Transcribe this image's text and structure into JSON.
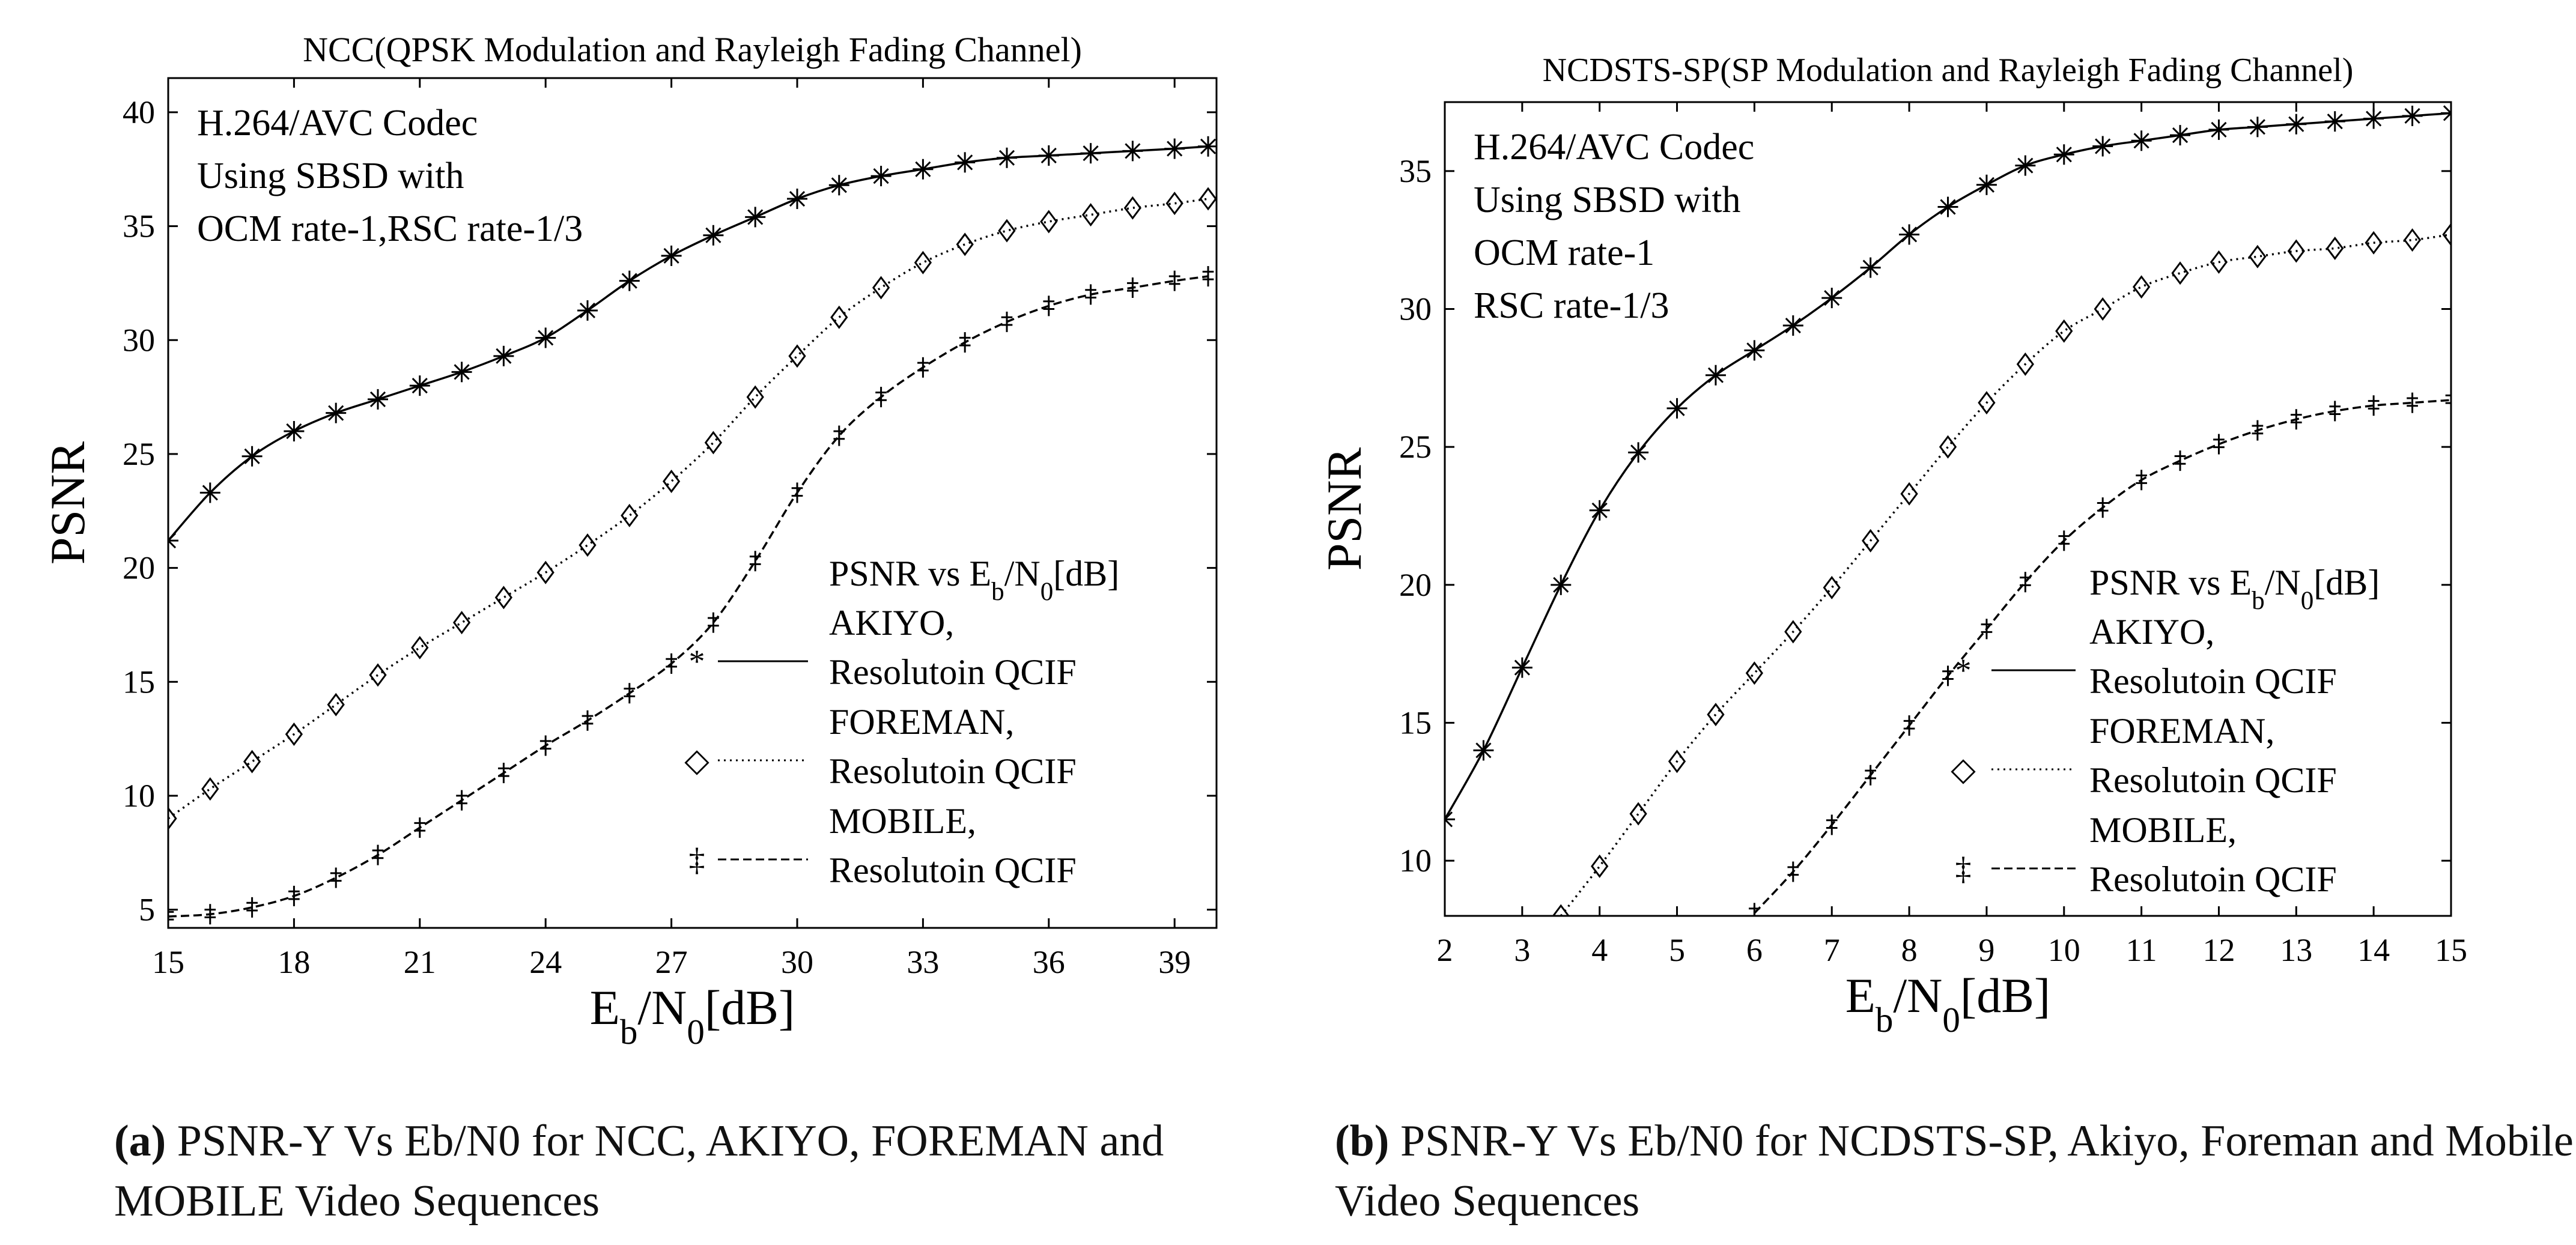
{
  "chart_data": [
    {
      "type": "line",
      "title": "NCC(QPSK Modulation and Rayleigh Fading Channel)",
      "annotation": [
        "H.264/AVC Codec",
        "Using SBSD with",
        "OCM rate-1,RSC rate-1/3"
      ],
      "xlabel": "Eb/N0[dB]",
      "ylabel": "PSNR",
      "xlim": [
        15,
        40
      ],
      "ylim": [
        4.2,
        41.5
      ],
      "xticks": [
        15,
        18,
        21,
        24,
        27,
        30,
        33,
        36,
        39
      ],
      "yticks": [
        5,
        10,
        15,
        20,
        25,
        30,
        35,
        40
      ],
      "grid": false,
      "legend": {
        "placement": "bottom-right",
        "title": "PSNR vs Eb/N0[dB]",
        "entries": [
          {
            "line1": "AKIYO,",
            "line2": "Resolutoin QCIF",
            "marker": "*",
            "style": "solid"
          },
          {
            "line1": "FOREMAN,",
            "line2": "Resolutoin QCIF",
            "marker": "◇",
            "style": "dotted"
          },
          {
            "line1": "MOBILE,",
            "line2": "Resolutoin QCIF",
            "marker": "‡",
            "style": "dashed"
          }
        ]
      },
      "series": [
        {
          "name": "AKIYO",
          "marker": "star",
          "style": "solid",
          "x": [
            15,
            16,
            17,
            18,
            19,
            20,
            21,
            22,
            23,
            24,
            25,
            26,
            27,
            28,
            29,
            30,
            31,
            32,
            33,
            34,
            35,
            36,
            37,
            38,
            39,
            39.8
          ],
          "y": [
            21.2,
            23.3,
            24.9,
            26.0,
            26.8,
            27.4,
            28.0,
            28.6,
            29.3,
            30.1,
            31.3,
            32.6,
            33.7,
            34.6,
            35.4,
            36.2,
            36.8,
            37.2,
            37.5,
            37.8,
            38.0,
            38.1,
            38.2,
            38.3,
            38.4,
            38.5
          ]
        },
        {
          "name": "FOREMAN",
          "marker": "diamond",
          "style": "dotted",
          "x": [
            15,
            16,
            17,
            18,
            19,
            20,
            21,
            22,
            23,
            24,
            25,
            26,
            27,
            28,
            29,
            30,
            31,
            32,
            33,
            34,
            35,
            36,
            37,
            38,
            39,
            39.8
          ],
          "y": [
            9.0,
            10.3,
            11.5,
            12.7,
            14.0,
            15.3,
            16.5,
            17.6,
            18.7,
            19.8,
            21.0,
            22.3,
            23.8,
            25.5,
            27.5,
            29.3,
            31.0,
            32.3,
            33.4,
            34.2,
            34.8,
            35.2,
            35.5,
            35.8,
            36.0,
            36.2
          ]
        },
        {
          "name": "MOBILE",
          "marker": "dagger",
          "style": "dashed",
          "x": [
            15,
            16,
            17,
            18,
            19,
            20,
            21,
            22,
            23,
            24,
            25,
            26,
            27,
            28,
            29,
            30,
            31,
            32,
            33,
            34,
            35,
            36,
            37,
            38,
            39,
            39.8
          ],
          "y": [
            4.7,
            4.8,
            5.1,
            5.6,
            6.4,
            7.4,
            8.6,
            9.8,
            11.0,
            12.2,
            13.3,
            14.5,
            15.8,
            17.6,
            20.3,
            23.3,
            25.8,
            27.5,
            28.8,
            29.9,
            30.8,
            31.5,
            32.0,
            32.3,
            32.6,
            32.8
          ]
        }
      ]
    },
    {
      "type": "line",
      "title": "NCDSTS-SP(SP Modulation and Rayleigh Fading Channel)",
      "annotation": [
        "H.264/AVC Codec",
        "Using SBSD with",
        "OCM rate-1",
        "RSC rate-1/3"
      ],
      "xlabel": "Eb/N0[dB]",
      "ylabel": "PSNR",
      "xlim": [
        2,
        15
      ],
      "ylim": [
        8,
        37.5
      ],
      "xticks": [
        2,
        3,
        4,
        5,
        6,
        7,
        8,
        9,
        10,
        11,
        12,
        13,
        14,
        15
      ],
      "yticks": [
        10,
        15,
        20,
        25,
        30,
        35
      ],
      "grid": false,
      "legend": {
        "placement": "bottom-right",
        "title": "PSNR vs Eb/N0[dB]",
        "entries": [
          {
            "line1": "AKIYO,",
            "line2": "Resolutoin QCIF",
            "marker": "*",
            "style": "solid"
          },
          {
            "line1": "FOREMAN,",
            "line2": "Resolutoin QCIF",
            "marker": "◇",
            "style": "dotted"
          },
          {
            "line1": "MOBILE,",
            "line2": "Resolutoin QCIF",
            "marker": "‡",
            "style": "dashed"
          }
        ]
      },
      "series": [
        {
          "name": "AKIYO",
          "marker": "star",
          "style": "solid",
          "x": [
            2,
            2.5,
            3,
            3.5,
            4,
            4.5,
            5,
            5.5,
            6,
            6.5,
            7,
            7.5,
            8,
            8.5,
            9,
            9.5,
            10,
            10.5,
            11,
            11.5,
            12,
            12.5,
            13,
            13.5,
            14,
            14.5,
            15
          ],
          "y": [
            11.5,
            14.0,
            17.0,
            20.0,
            22.7,
            24.8,
            26.4,
            27.6,
            28.5,
            29.4,
            30.4,
            31.5,
            32.7,
            33.7,
            34.5,
            35.2,
            35.6,
            35.9,
            36.1,
            36.3,
            36.5,
            36.6,
            36.7,
            36.8,
            36.9,
            37.0,
            37.1
          ]
        },
        {
          "name": "FOREMAN",
          "marker": "diamond",
          "style": "dotted",
          "x": [
            3.5,
            4,
            4.5,
            5,
            5.5,
            6,
            6.5,
            7,
            7.5,
            8,
            8.5,
            9,
            9.5,
            10,
            10.5,
            11,
            11.5,
            12,
            12.5,
            13,
            13.5,
            14,
            14.5,
            15
          ],
          "y": [
            8.0,
            9.8,
            11.7,
            13.6,
            15.3,
            16.8,
            18.3,
            19.9,
            21.6,
            23.3,
            25.0,
            26.6,
            28.0,
            29.2,
            30.0,
            30.8,
            31.3,
            31.7,
            31.9,
            32.1,
            32.2,
            32.4,
            32.5,
            32.7
          ]
        },
        {
          "name": "MOBILE",
          "marker": "dagger",
          "style": "dashed",
          "x": [
            6,
            6.5,
            7,
            7.5,
            8,
            8.5,
            9,
            9.5,
            10,
            10.5,
            11,
            11.5,
            12,
            12.5,
            13,
            13.5,
            14,
            14.5,
            15
          ],
          "y": [
            8.1,
            9.6,
            11.3,
            13.1,
            14.9,
            16.7,
            18.4,
            20.1,
            21.6,
            22.8,
            23.8,
            24.5,
            25.1,
            25.6,
            26.0,
            26.3,
            26.5,
            26.6,
            26.7
          ]
        }
      ]
    }
  ],
  "captions": [
    {
      "label": "(a)",
      "text": "PSNR-Y Vs Eb/N0 for NCC, AKIYO, FOREMAN and MOBILE Video Sequences"
    },
    {
      "label": "(b)",
      "text": "PSNR-Y Vs Eb/N0 for NCDSTS-SP, Akiyo, Foreman and Mobile Video Sequences"
    }
  ]
}
